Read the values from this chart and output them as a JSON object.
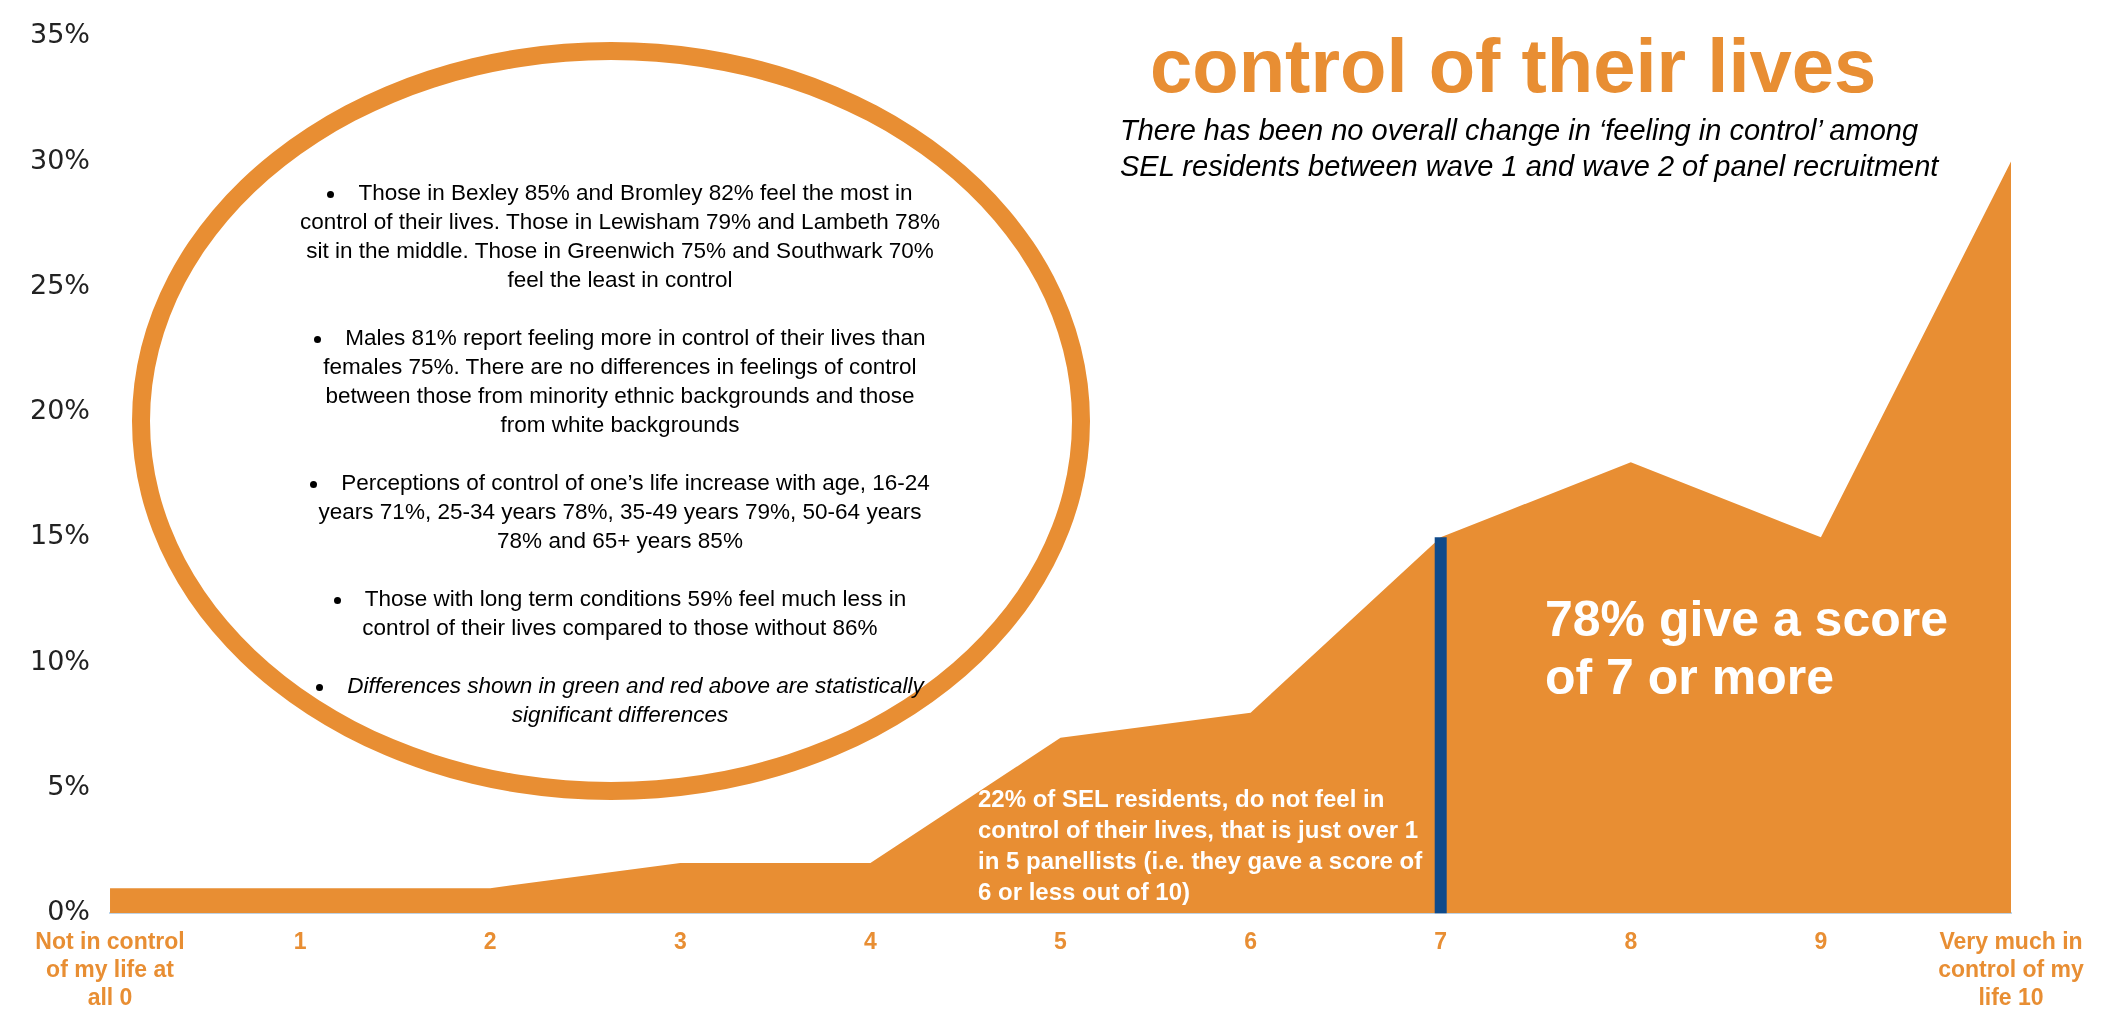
{
  "chart_data": {
    "type": "area",
    "title": "control of their lives",
    "subtitle": "There has been no overall change in ‘feeling in control’ among SEL residents between wave 1 and wave 2 of panel recruitment",
    "categories": [
      "Not in control of my life at all 0",
      "1",
      "2",
      "3",
      "4",
      "5",
      "6",
      "7",
      "8",
      "9",
      "Very much in control of my life 10"
    ],
    "series": [
      {
        "color": "#e88e33",
        "values": [
          1,
          1,
          1,
          2,
          2,
          7,
          8,
          15,
          18,
          15,
          30
        ]
      }
    ],
    "ylim": [
      0,
      35
    ],
    "yticks": [
      {
        "value": 0,
        "label": "0%"
      },
      {
        "value": 5,
        "label": "5%"
      },
      {
        "value": 10,
        "label": "10%"
      },
      {
        "value": 15,
        "label": "15%"
      },
      {
        "value": 20,
        "label": "20%"
      },
      {
        "value": 25,
        "label": "25%"
      },
      {
        "value": 30,
        "label": "30%"
      },
      {
        "value": 35,
        "label": "35%"
      }
    ],
    "grid": false,
    "legend": false,
    "ref_lines": [
      {
        "axis": "x",
        "value": "7",
        "color": "#0f4a8a"
      }
    ],
    "annotations": [
      "Those in Bexley 85% and Bromley 82% feel the most in control of their lives. Those in Lewisham 79% and Lambeth 78% sit in the middle. Those in Greenwich 75% and Southwark 70% feel the least in control",
      "Males 81% report feeling more in control of their lives than females 75%. There are no differences in feelings of control between those from minority ethnic backgrounds and those from white backgrounds",
      "Perceptions of control of one’s life increase with age, 16-24 years 71%, 25-34 years 78%, 35-49 years 79%, 50-64 years 78% and 65+ years 85%",
      "Those with long term conditions 59% feel much less in control of their lives compared to those without 86%",
      "Differences shown in green and red above are statistically significant differences",
      "22% of SEL residents, do not feel in control of their lives, that is just over 1 in 5 panellists (i.e. they gave a score of 6 or less out of 10)",
      "78% give a score of 7 or more"
    ]
  }
}
